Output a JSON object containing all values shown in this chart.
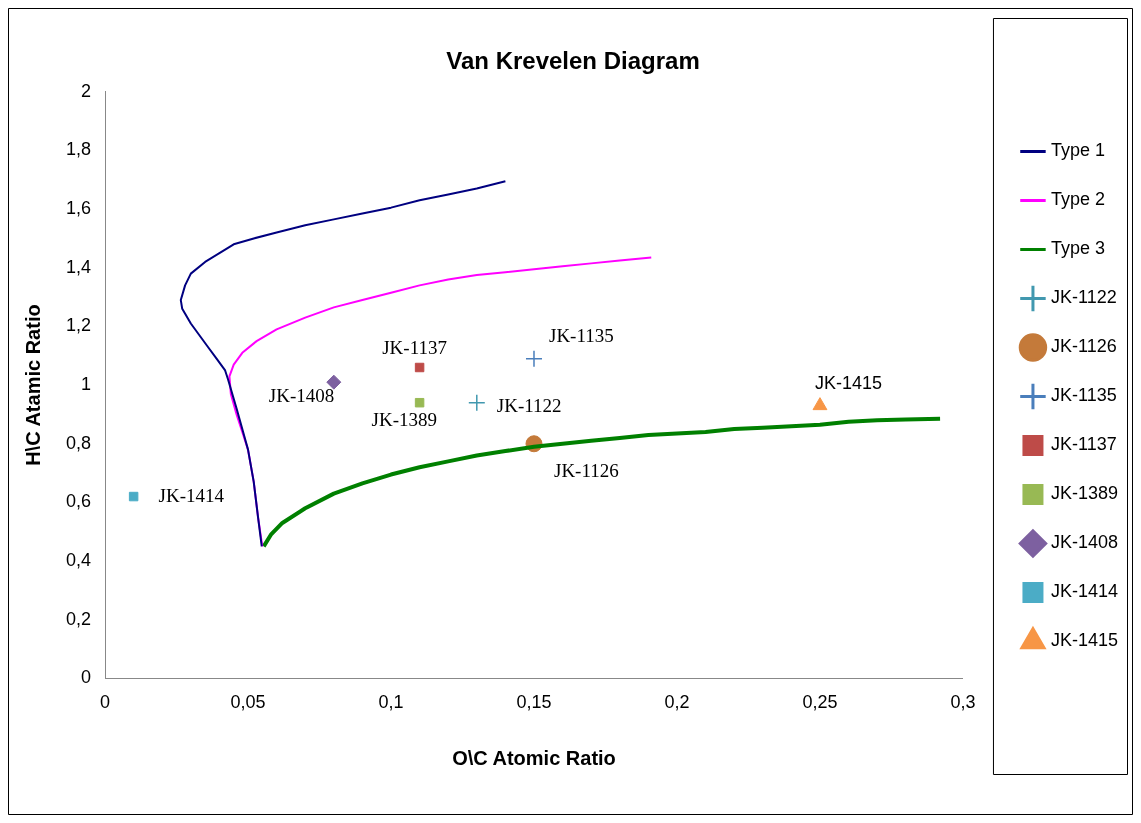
{
  "chart_data": {
    "type": "scatter",
    "title": "Van Krevelen Diagram",
    "xlabel": "O\\C Atomic Ratio",
    "ylabel": "H\\C Atamic Ratio",
    "xlim": [
      0,
      0.3
    ],
    "xticks": [
      0,
      {
        "value": 0.05,
        "label": "0,05"
      },
      {
        "value": 0.1,
        "label": "0,1"
      },
      {
        "value": 0.15,
        "label": "0,15"
      },
      {
        "value": 0.2,
        "label": "0,2"
      },
      {
        "value": 0.25,
        "label": "0,25"
      },
      {
        "value": 0.3,
        "label": "0,3"
      }
    ],
    "ylim": [
      0,
      2
    ],
    "yticks": [
      0,
      {
        "value": 0.2,
        "label": "0,2"
      },
      {
        "value": 0.4,
        "label": "0,4"
      },
      {
        "value": 0.6,
        "label": "0,6"
      },
      {
        "value": 0.8,
        "label": "0,8"
      },
      1,
      {
        "value": 1.2,
        "label": "1,2"
      },
      {
        "value": 1.4,
        "label": "1,4"
      },
      {
        "value": 1.6,
        "label": "1,6"
      },
      {
        "value": 1.8,
        "label": "1,8"
      },
      2
    ],
    "grid": false,
    "legend": "right",
    "series": [
      {
        "name": "Type 1",
        "type": "line",
        "marker": "none",
        "color": "#000080",
        "x": [
          0.0548,
          0.0535,
          0.052,
          0.05,
          0.048,
          0.046,
          0.043,
          0.042,
          0.039,
          0.036,
          0.033,
          0.03,
          0.027,
          0.0265,
          0.028,
          0.03,
          0.035,
          0.04,
          0.045,
          0.052,
          0.06,
          0.07,
          0.08,
          0.09,
          0.1,
          0.11,
          0.12,
          0.13,
          0.14
        ],
        "values": [
          0.45,
          0.55,
          0.67,
          0.78,
          0.85,
          0.92,
          1.02,
          1.05,
          1.09,
          1.13,
          1.17,
          1.21,
          1.26,
          1.29,
          1.34,
          1.38,
          1.42,
          1.45,
          1.48,
          1.5,
          1.52,
          1.545,
          1.565,
          1.585,
          1.605,
          1.63,
          1.65,
          1.67,
          1.695
        ]
      },
      {
        "name": "Type 2",
        "type": "line",
        "marker": "none",
        "color": "#ff00ff",
        "x": [
          0.055,
          0.0535,
          0.052,
          0.05,
          0.048,
          0.046,
          0.044,
          0.0435,
          0.045,
          0.048,
          0.053,
          0.06,
          0.07,
          0.08,
          0.09,
          0.1,
          0.11,
          0.12,
          0.13,
          0.14,
          0.15,
          0.16,
          0.17,
          0.18,
          0.191
        ],
        "values": [
          0.45,
          0.55,
          0.67,
          0.78,
          0.84,
          0.9,
          0.97,
          1.03,
          1.07,
          1.11,
          1.15,
          1.19,
          1.23,
          1.265,
          1.29,
          1.315,
          1.34,
          1.36,
          1.375,
          1.385,
          1.395,
          1.405,
          1.415,
          1.425,
          1.435
        ]
      },
      {
        "name": "Type 3",
        "type": "line",
        "marker": "none",
        "color": "#008000",
        "x": [
          0.0555,
          0.058,
          0.062,
          0.07,
          0.08,
          0.09,
          0.1,
          0.11,
          0.12,
          0.13,
          0.14,
          0.15,
          0.16,
          0.17,
          0.18,
          0.19,
          0.2,
          0.21,
          0.22,
          0.23,
          0.24,
          0.25,
          0.26,
          0.27,
          0.28,
          0.292
        ],
        "values": [
          0.45,
          0.49,
          0.53,
          0.58,
          0.63,
          0.665,
          0.695,
          0.72,
          0.74,
          0.76,
          0.775,
          0.79,
          0.8,
          0.81,
          0.82,
          0.83,
          0.835,
          0.84,
          0.85,
          0.855,
          0.86,
          0.865,
          0.875,
          0.88,
          0.883,
          0.885
        ]
      },
      {
        "name": "JK-1122",
        "marker": "cross",
        "color": "#4198af",
        "x": [
          0.13
        ],
        "values": [
          0.94
        ]
      },
      {
        "name": "JK-1126",
        "marker": "circle",
        "color": "#c47a3a",
        "x": [
          0.15
        ],
        "values": [
          0.8
        ]
      },
      {
        "name": "JK-1135",
        "marker": "cross",
        "color": "#4a7ebb",
        "x": [
          0.15
        ],
        "values": [
          1.09
        ]
      },
      {
        "name": "JK-1137",
        "marker": "square",
        "color": "#be4b48",
        "x": [
          0.11
        ],
        "values": [
          1.06
        ]
      },
      {
        "name": "JK-1389",
        "marker": "square",
        "color": "#98b954",
        "x": [
          0.11
        ],
        "values": [
          0.94
        ]
      },
      {
        "name": "JK-1408",
        "marker": "diamond",
        "color": "#7d60a0",
        "x": [
          0.08
        ],
        "values": [
          1.01
        ]
      },
      {
        "name": "JK-1414",
        "marker": "square",
        "color": "#4bacc6",
        "x": [
          0.01
        ],
        "values": [
          0.62
        ]
      },
      {
        "name": "JK-1415",
        "marker": "triangle",
        "color": "#f79646",
        "x": [
          0.25
        ],
        "values": [
          0.93
        ]
      }
    ]
  }
}
